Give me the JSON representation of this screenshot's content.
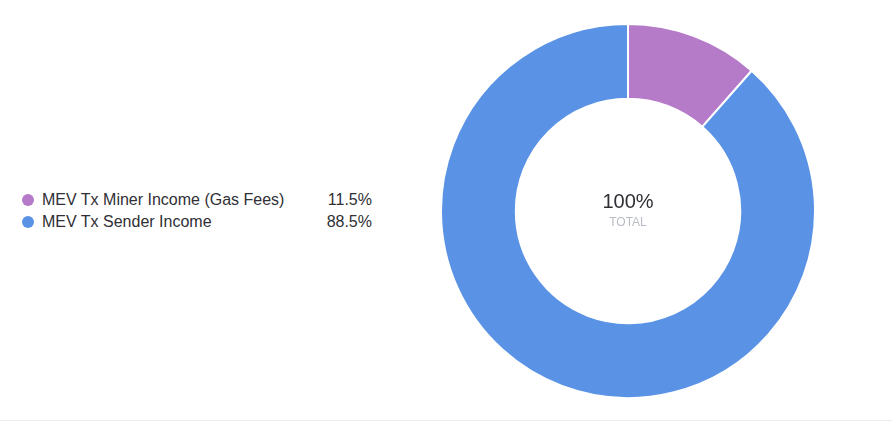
{
  "chart_data": {
    "type": "doughnut",
    "categories": [
      "MEV Tx Miner Income (Gas Fees)",
      "MEV Tx Sender Income"
    ],
    "values": [
      11.5,
      88.5
    ],
    "value_labels": [
      "11.5%",
      "88.5%"
    ],
    "colors": [
      "#b57ac8",
      "#5a93e6"
    ],
    "annotations": [
      "100%",
      "TOTAL"
    ]
  }
}
